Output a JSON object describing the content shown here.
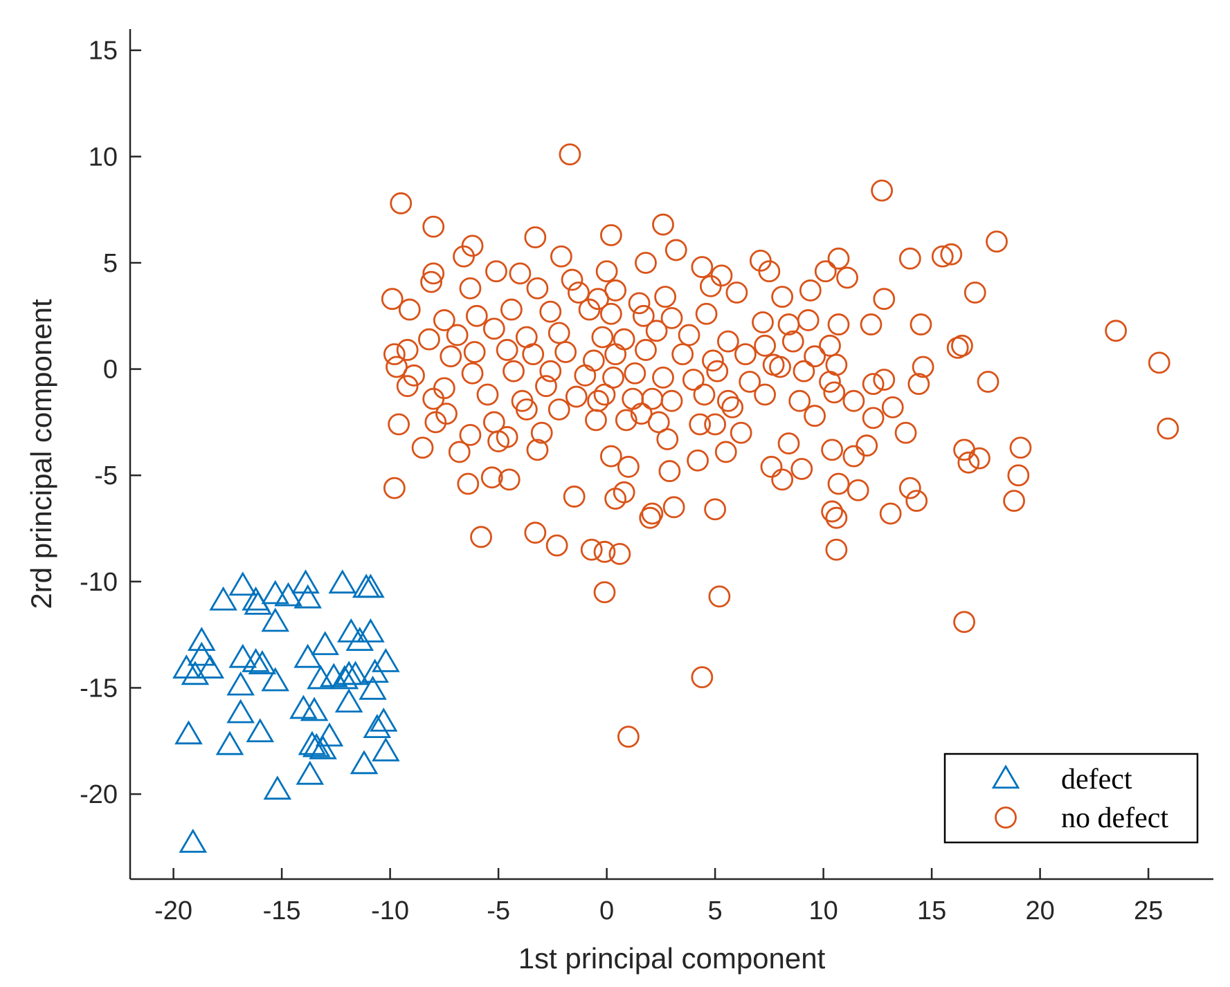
{
  "chart_data": {
    "type": "scatter",
    "title": "",
    "xlabel": "1st principal component",
    "ylabel": "2rd principal component",
    "xlim": [
      -22,
      28
    ],
    "ylim": [
      -24,
      16
    ],
    "xticks": [
      -20,
      -15,
      -10,
      -5,
      0,
      5,
      10,
      15,
      20,
      25
    ],
    "yticks": [
      -20,
      -15,
      -10,
      -5,
      0,
      5,
      10,
      15
    ],
    "grid": false,
    "legend_position": "bottom-right",
    "series": [
      {
        "name": "defect",
        "marker": "triangle",
        "color": "#0072BD",
        "points": [
          [
            -19.1,
            -22.3
          ],
          [
            -19.3,
            -17.2
          ],
          [
            -19.4,
            -14.1
          ],
          [
            -19.0,
            -14.4
          ],
          [
            -18.7,
            -13.5
          ],
          [
            -18.7,
            -12.8
          ],
          [
            -18.3,
            -14.1
          ],
          [
            -17.7,
            -10.9
          ],
          [
            -17.4,
            -17.7
          ],
          [
            -16.8,
            -10.2
          ],
          [
            -16.8,
            -13.6
          ],
          [
            -16.9,
            -14.9
          ],
          [
            -16.9,
            -16.2
          ],
          [
            -16.2,
            -10.9
          ],
          [
            -16.1,
            -11.1
          ],
          [
            -16.2,
            -13.8
          ],
          [
            -15.9,
            -13.9
          ],
          [
            -16.0,
            -17.1
          ],
          [
            -15.3,
            -10.6
          ],
          [
            -15.3,
            -11.9
          ],
          [
            -15.3,
            -14.7
          ],
          [
            -15.2,
            -19.8
          ],
          [
            -14.7,
            -10.7
          ],
          [
            -14.0,
            -16.0
          ],
          [
            -13.9,
            -10.1
          ],
          [
            -13.8,
            -10.8
          ],
          [
            -13.8,
            -13.6
          ],
          [
            -13.5,
            -16.1
          ],
          [
            -13.6,
            -17.7
          ],
          [
            -13.4,
            -17.8
          ],
          [
            -13.2,
            -14.6
          ],
          [
            -13.1,
            -17.9
          ],
          [
            -13.0,
            -13.0
          ],
          [
            -13.7,
            -19.1
          ],
          [
            -12.8,
            -17.3
          ],
          [
            -12.6,
            -14.5
          ],
          [
            -12.1,
            -14.6
          ],
          [
            -12.2,
            -10.1
          ],
          [
            -11.9,
            -14.4
          ],
          [
            -11.9,
            -15.7
          ],
          [
            -11.8,
            -12.4
          ],
          [
            -11.6,
            -14.4
          ],
          [
            -11.4,
            -12.8
          ],
          [
            -11.2,
            -18.6
          ],
          [
            -11.1,
            -10.3
          ],
          [
            -10.9,
            -10.3
          ],
          [
            -10.9,
            -12.4
          ],
          [
            -10.8,
            -15.1
          ],
          [
            -10.7,
            -14.3
          ],
          [
            -10.6,
            -16.9
          ],
          [
            -10.3,
            -16.6
          ],
          [
            -10.2,
            -18.0
          ],
          [
            -10.2,
            -13.8
          ]
        ]
      },
      {
        "name": "no defect",
        "marker": "circle",
        "color": "#D95319",
        "points": [
          [
            -1.7,
            10.1
          ],
          [
            12.7,
            8.4
          ],
          [
            -9.5,
            7.8
          ],
          [
            -8.0,
            6.7
          ],
          [
            18.0,
            6.0
          ],
          [
            -6.2,
            5.8
          ],
          [
            -3.3,
            6.2
          ],
          [
            0.2,
            6.3
          ],
          [
            2.6,
            6.8
          ],
          [
            15.9,
            5.4
          ],
          [
            15.5,
            5.3
          ],
          [
            14.0,
            5.2
          ],
          [
            -6.6,
            5.3
          ],
          [
            -2.1,
            5.3
          ],
          [
            1.8,
            5.0
          ],
          [
            3.2,
            5.6
          ],
          [
            7.1,
            5.1
          ],
          [
            10.7,
            5.2
          ],
          [
            -8.0,
            4.5
          ],
          [
            -5.1,
            4.6
          ],
          [
            -1.6,
            4.2
          ],
          [
            0.0,
            4.6
          ],
          [
            4.4,
            4.8
          ],
          [
            5.3,
            4.4
          ],
          [
            7.5,
            4.6
          ],
          [
            10.1,
            4.6
          ],
          [
            11.1,
            4.3
          ],
          [
            -9.9,
            3.3
          ],
          [
            -8.1,
            4.1
          ],
          [
            -6.3,
            3.8
          ],
          [
            -4.0,
            4.5
          ],
          [
            -3.2,
            3.8
          ],
          [
            -1.3,
            3.6
          ],
          [
            -0.4,
            3.3
          ],
          [
            0.4,
            3.7
          ],
          [
            1.5,
            3.1
          ],
          [
            2.7,
            3.4
          ],
          [
            4.8,
            3.9
          ],
          [
            6.0,
            3.6
          ],
          [
            8.1,
            3.4
          ],
          [
            9.4,
            3.7
          ],
          [
            12.8,
            3.3
          ],
          [
            17.0,
            3.6
          ],
          [
            -9.1,
            2.8
          ],
          [
            -7.5,
            2.3
          ],
          [
            -6.0,
            2.5
          ],
          [
            -4.4,
            2.8
          ],
          [
            -2.6,
            2.7
          ],
          [
            -0.8,
            2.8
          ],
          [
            0.2,
            2.6
          ],
          [
            1.7,
            2.5
          ],
          [
            3.0,
            2.4
          ],
          [
            4.6,
            2.6
          ],
          [
            7.2,
            2.2
          ],
          [
            8.4,
            2.1
          ],
          [
            9.3,
            2.3
          ],
          [
            10.7,
            2.1
          ],
          [
            12.2,
            2.1
          ],
          [
            14.5,
            2.1
          ],
          [
            23.5,
            1.8
          ],
          [
            -8.2,
            1.4
          ],
          [
            -6.9,
            1.6
          ],
          [
            -5.2,
            1.9
          ],
          [
            -3.7,
            1.5
          ],
          [
            -2.2,
            1.7
          ],
          [
            -0.2,
            1.5
          ],
          [
            0.8,
            1.4
          ],
          [
            2.3,
            1.8
          ],
          [
            3.8,
            1.6
          ],
          [
            5.6,
            1.3
          ],
          [
            7.3,
            1.1
          ],
          [
            8.6,
            1.3
          ],
          [
            10.3,
            1.1
          ],
          [
            16.2,
            1.0
          ],
          [
            16.4,
            1.1
          ],
          [
            -9.8,
            0.7
          ],
          [
            -9.2,
            0.9
          ],
          [
            -7.2,
            0.6
          ],
          [
            -6.1,
            0.8
          ],
          [
            -4.6,
            0.9
          ],
          [
            -3.4,
            0.7
          ],
          [
            -1.9,
            0.8
          ],
          [
            -0.6,
            0.4
          ],
          [
            0.4,
            0.7
          ],
          [
            1.8,
            0.9
          ],
          [
            3.5,
            0.7
          ],
          [
            4.9,
            0.4
          ],
          [
            6.4,
            0.7
          ],
          [
            7.7,
            0.2
          ],
          [
            9.6,
            0.6
          ],
          [
            10.6,
            0.2
          ],
          [
            25.5,
            0.3
          ],
          [
            -9.7,
            0.1
          ],
          [
            -8.9,
            -0.3
          ],
          [
            -6.2,
            -0.2
          ],
          [
            -4.3,
            -0.1
          ],
          [
            -2.6,
            -0.1
          ],
          [
            -1.0,
            -0.3
          ],
          [
            0.3,
            -0.4
          ],
          [
            1.3,
            -0.2
          ],
          [
            2.6,
            -0.4
          ],
          [
            4.0,
            -0.5
          ],
          [
            5.1,
            -0.1
          ],
          [
            6.6,
            -0.6
          ],
          [
            8.0,
            0.1
          ],
          [
            9.1,
            -0.1
          ],
          [
            10.3,
            -0.6
          ],
          [
            12.8,
            -0.5
          ],
          [
            14.6,
            0.1
          ],
          [
            17.6,
            -0.6
          ],
          [
            -9.2,
            -0.8
          ],
          [
            -7.5,
            -0.9
          ],
          [
            -5.5,
            -1.2
          ],
          [
            -3.9,
            -1.5
          ],
          [
            -2.8,
            -0.8
          ],
          [
            -1.4,
            -1.3
          ],
          [
            -0.1,
            -1.2
          ],
          [
            1.2,
            -1.4
          ],
          [
            2.1,
            -1.4
          ],
          [
            3.0,
            -1.5
          ],
          [
            4.5,
            -1.2
          ],
          [
            5.6,
            -1.5
          ],
          [
            7.3,
            -1.2
          ],
          [
            8.9,
            -1.5
          ],
          [
            10.5,
            -1.1
          ],
          [
            11.4,
            -1.5
          ],
          [
            12.3,
            -0.7
          ],
          [
            14.4,
            -0.7
          ],
          [
            -8.0,
            -1.4
          ],
          [
            -7.4,
            -2.1
          ],
          [
            -5.2,
            -2.5
          ],
          [
            -3.7,
            -1.9
          ],
          [
            -2.2,
            -1.9
          ],
          [
            -0.4,
            -1.5
          ],
          [
            0.9,
            -2.4
          ],
          [
            2.4,
            -2.5
          ],
          [
            4.3,
            -2.6
          ],
          [
            5.8,
            -1.8
          ],
          [
            9.6,
            -2.2
          ],
          [
            12.3,
            -2.3
          ],
          [
            13.2,
            -1.8
          ],
          [
            -9.6,
            -2.6
          ],
          [
            -7.9,
            -2.5
          ],
          [
            -6.3,
            -3.1
          ],
          [
            -4.6,
            -3.2
          ],
          [
            -3.0,
            -3.0
          ],
          [
            -0.5,
            -2.4
          ],
          [
            1.6,
            -2.1
          ],
          [
            2.8,
            -3.3
          ],
          [
            5.0,
            -2.6
          ],
          [
            6.2,
            -3.0
          ],
          [
            8.4,
            -3.5
          ],
          [
            10.4,
            -3.8
          ],
          [
            12.0,
            -3.6
          ],
          [
            13.8,
            -3.0
          ],
          [
            -8.5,
            -3.7
          ],
          [
            -6.8,
            -3.9
          ],
          [
            -5.0,
            -3.4
          ],
          [
            -3.2,
            -3.8
          ],
          [
            0.2,
            -4.1
          ],
          [
            1.0,
            -4.6
          ],
          [
            2.9,
            -4.8
          ],
          [
            4.2,
            -4.3
          ],
          [
            5.5,
            -3.9
          ],
          [
            7.6,
            -4.6
          ],
          [
            9.0,
            -4.7
          ],
          [
            11.4,
            -4.1
          ],
          [
            16.5,
            -3.8
          ],
          [
            16.7,
            -4.4
          ],
          [
            17.2,
            -4.2
          ],
          [
            19.1,
            -3.7
          ],
          [
            -9.8,
            -5.6
          ],
          [
            -6.4,
            -5.4
          ],
          [
            -5.3,
            -5.1
          ],
          [
            -4.5,
            -5.2
          ],
          [
            -1.5,
            -6.0
          ],
          [
            0.4,
            -6.1
          ],
          [
            0.8,
            -5.8
          ],
          [
            3.1,
            -6.5
          ],
          [
            5.0,
            -6.6
          ],
          [
            8.1,
            -5.2
          ],
          [
            10.7,
            -5.4
          ],
          [
            11.6,
            -5.7
          ],
          [
            14.0,
            -5.6
          ],
          [
            14.3,
            -6.2
          ],
          [
            18.8,
            -6.2
          ],
          [
            19.0,
            -5.0
          ],
          [
            -5.8,
            -7.9
          ],
          [
            -3.3,
            -7.7
          ],
          [
            -2.3,
            -8.3
          ],
          [
            -0.7,
            -8.5
          ],
          [
            -0.1,
            -8.6
          ],
          [
            0.6,
            -8.7
          ],
          [
            2.1,
            -6.8
          ],
          [
            2.0,
            -7.0
          ],
          [
            10.4,
            -6.7
          ],
          [
            10.6,
            -7.0
          ],
          [
            10.6,
            -8.5
          ],
          [
            13.1,
            -6.8
          ],
          [
            25.9,
            -2.8
          ],
          [
            -0.1,
            -10.5
          ],
          [
            5.2,
            -10.7
          ],
          [
            16.5,
            -11.9
          ],
          [
            4.4,
            -14.5
          ],
          [
            1.0,
            -17.3
          ]
        ]
      }
    ]
  }
}
